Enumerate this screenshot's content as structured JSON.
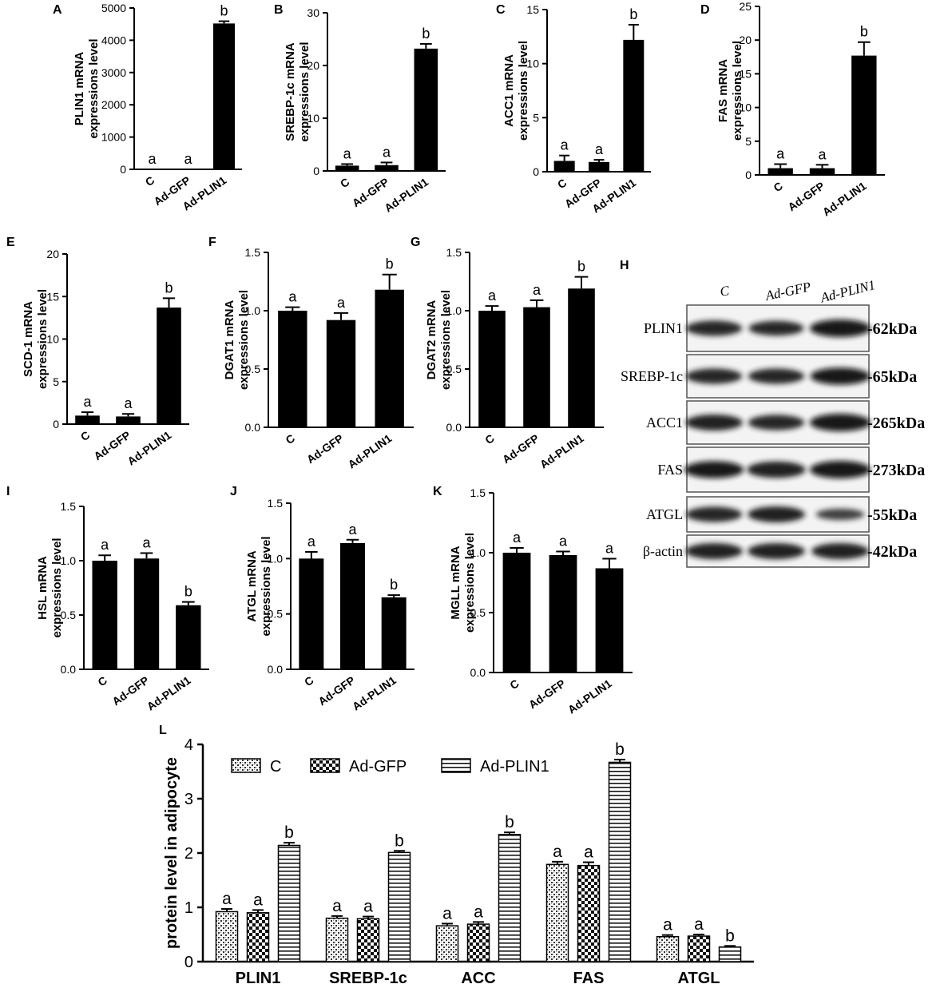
{
  "chart_data": [
    {
      "type": "bar",
      "panel_label": "A",
      "ylabel": "PLIN1 mRNA\nexpressions level",
      "categories": [
        "C",
        "Ad-GFP",
        "Ad-PLIN1"
      ],
      "values": [
        1,
        1,
        4520
      ],
      "errors": [
        0,
        0,
        70
      ],
      "sig": [
        "a",
        "a",
        "b"
      ],
      "ylim": [
        0,
        5000
      ],
      "yticks": [
        0,
        1000,
        2000,
        3000,
        4000,
        5000
      ]
    },
    {
      "type": "bar",
      "panel_label": "B",
      "ylabel": "SREBP-1c mRNA\nexpressions level",
      "categories": [
        "C",
        "Ad-GFP",
        "Ad-PLIN1"
      ],
      "values": [
        1.0,
        1.1,
        23.2
      ],
      "errors": [
        0.3,
        0.5,
        0.9
      ],
      "sig": [
        "a",
        "a",
        "b"
      ],
      "ylim": [
        0,
        30
      ],
      "yticks": [
        0,
        10,
        20,
        30
      ]
    },
    {
      "type": "bar",
      "panel_label": "C",
      "ylabel": "ACC1 mRNA\nexpressions level",
      "categories": [
        "C",
        "Ad-GFP",
        "Ad-PLIN1"
      ],
      "values": [
        1.0,
        0.9,
        12.2
      ],
      "errors": [
        0.5,
        0.2,
        1.4
      ],
      "sig": [
        "a",
        "a",
        "b"
      ],
      "ylim": [
        0,
        15
      ],
      "yticks": [
        0,
        5,
        10,
        15
      ]
    },
    {
      "type": "bar",
      "panel_label": "D",
      "ylabel": "FAS mRNA\nexpressions level",
      "categories": [
        "C",
        "Ad-GFP",
        "Ad-PLIN1"
      ],
      "values": [
        1.0,
        1.0,
        17.7
      ],
      "errors": [
        0.6,
        0.5,
        2.0
      ],
      "sig": [
        "a",
        "a",
        "b"
      ],
      "ylim": [
        0,
        25
      ],
      "yticks": [
        0,
        5,
        10,
        15,
        20,
        25
      ]
    },
    {
      "type": "bar",
      "panel_label": "E",
      "ylabel": "SCD-1 mRNA\nexpressions level",
      "categories": [
        "C",
        "Ad-GFP",
        "Ad-PLIN1"
      ],
      "values": [
        1.0,
        0.9,
        13.7
      ],
      "errors": [
        0.4,
        0.3,
        1.1
      ],
      "sig": [
        "a",
        "a",
        "b"
      ],
      "ylim": [
        0,
        20
      ],
      "yticks": [
        0,
        5,
        10,
        15,
        20
      ]
    },
    {
      "type": "bar",
      "panel_label": "F",
      "ylabel": "DGAT1 mRNA\nexpressions level",
      "categories": [
        "C",
        "Ad-GFP",
        "Ad-PLIN1"
      ],
      "values": [
        1.0,
        0.92,
        1.18
      ],
      "errors": [
        0.03,
        0.06,
        0.13
      ],
      "sig": [
        "a",
        "a",
        "b"
      ],
      "ylim": [
        0,
        1.5
      ],
      "yticks": [
        0.0,
        0.5,
        1.0,
        1.5
      ]
    },
    {
      "type": "bar",
      "panel_label": "G",
      "ylabel": "DGAT2 mRNA\nexpressions level",
      "categories": [
        "C",
        "Ad-GFP",
        "Ad-PLIN1"
      ],
      "values": [
        1.0,
        1.03,
        1.19
      ],
      "errors": [
        0.04,
        0.06,
        0.1
      ],
      "sig": [
        "a",
        "a",
        "b"
      ],
      "ylim": [
        0,
        1.5
      ],
      "yticks": [
        0.0,
        0.5,
        1.0,
        1.5
      ]
    },
    {
      "type": "bar",
      "panel_label": "I",
      "ylabel": "HSL mRNA\nexpressions level",
      "categories": [
        "C",
        "Ad-GFP",
        "Ad-PLIN1"
      ],
      "values": [
        1.0,
        1.02,
        0.59
      ],
      "errors": [
        0.05,
        0.05,
        0.03
      ],
      "sig": [
        "a",
        "a",
        "b"
      ],
      "ylim": [
        0,
        1.5
      ],
      "yticks": [
        0.0,
        0.5,
        1.0,
        1.5
      ]
    },
    {
      "type": "bar",
      "panel_label": "J",
      "ylabel": "ATGL mRNA\nexpressions level",
      "categories": [
        "C",
        "Ad-GFP",
        "Ad-PLIN1"
      ],
      "values": [
        1.0,
        1.14,
        0.65
      ],
      "errors": [
        0.06,
        0.03,
        0.02
      ],
      "sig": [
        "a",
        "a",
        "b"
      ],
      "ylim": [
        0,
        1.5
      ],
      "yticks": [
        0.0,
        0.5,
        1.0,
        1.5
      ]
    },
    {
      "type": "bar",
      "panel_label": "K",
      "ylabel": "MGLL mRNA\nexpressions level",
      "categories": [
        "C",
        "Ad-GFP",
        "Ad-PLIN1"
      ],
      "values": [
        1.0,
        0.98,
        0.87
      ],
      "errors": [
        0.04,
        0.03,
        0.08
      ],
      "sig": [
        "a",
        "a",
        "a"
      ],
      "ylim": [
        0,
        1.5
      ],
      "yticks": [
        0.0,
        0.5,
        1.0,
        1.5
      ]
    },
    {
      "type": "bar",
      "panel_label": "L",
      "ylabel": "protein level in adipocyte",
      "categories": [
        "PLIN1",
        "SREBP-1c",
        "ACC",
        "FAS",
        "ATGL"
      ],
      "ylim": [
        0,
        4
      ],
      "yticks": [
        0,
        1,
        2,
        3,
        4
      ],
      "legend_placement": "top",
      "series": [
        {
          "name": "C",
          "values": [
            0.92,
            0.8,
            0.66,
            1.79,
            0.46
          ],
          "errors": [
            0.05,
            0.04,
            0.04,
            0.05,
            0.03
          ],
          "sig": [
            "a",
            "a",
            "a",
            "a",
            "a"
          ]
        },
        {
          "name": "Ad-GFP",
          "values": [
            0.9,
            0.79,
            0.69,
            1.77,
            0.47
          ],
          "errors": [
            0.05,
            0.04,
            0.04,
            0.06,
            0.03
          ],
          "sig": [
            "a",
            "a",
            "a",
            "a",
            "a"
          ]
        },
        {
          "name": "Ad-PLIN1",
          "values": [
            2.14,
            2.01,
            2.34,
            3.67,
            0.27
          ],
          "errors": [
            0.05,
            0.03,
            0.04,
            0.05,
            0.02
          ],
          "sig": [
            "b",
            "b",
            "b",
            "b",
            "b"
          ]
        }
      ]
    }
  ],
  "western_blot": {
    "panel_label": "H",
    "lanes": [
      "C",
      "Ad-GFP",
      "Ad-PLIN1"
    ],
    "rows": [
      {
        "protein": "PLIN1",
        "size": "-62kDa",
        "intensity": [
          0.8,
          0.75,
          1.0
        ]
      },
      {
        "protein": "SREBP-1c",
        "size": "-65kDa",
        "intensity": [
          0.8,
          0.8,
          0.95
        ]
      },
      {
        "protein": "ACC1",
        "size": "-265kDa",
        "intensity": [
          0.85,
          0.8,
          1.0
        ]
      },
      {
        "protein": "FAS",
        "size": "-273kDa",
        "intensity": [
          0.95,
          0.9,
          1.0
        ]
      },
      {
        "protein": "ATGL",
        "size": "-55kDa",
        "intensity": [
          0.8,
          0.85,
          0.45
        ]
      },
      {
        "protein": "β-actin",
        "size": "-42kDa",
        "intensity": [
          0.85,
          0.85,
          0.85
        ]
      }
    ]
  }
}
